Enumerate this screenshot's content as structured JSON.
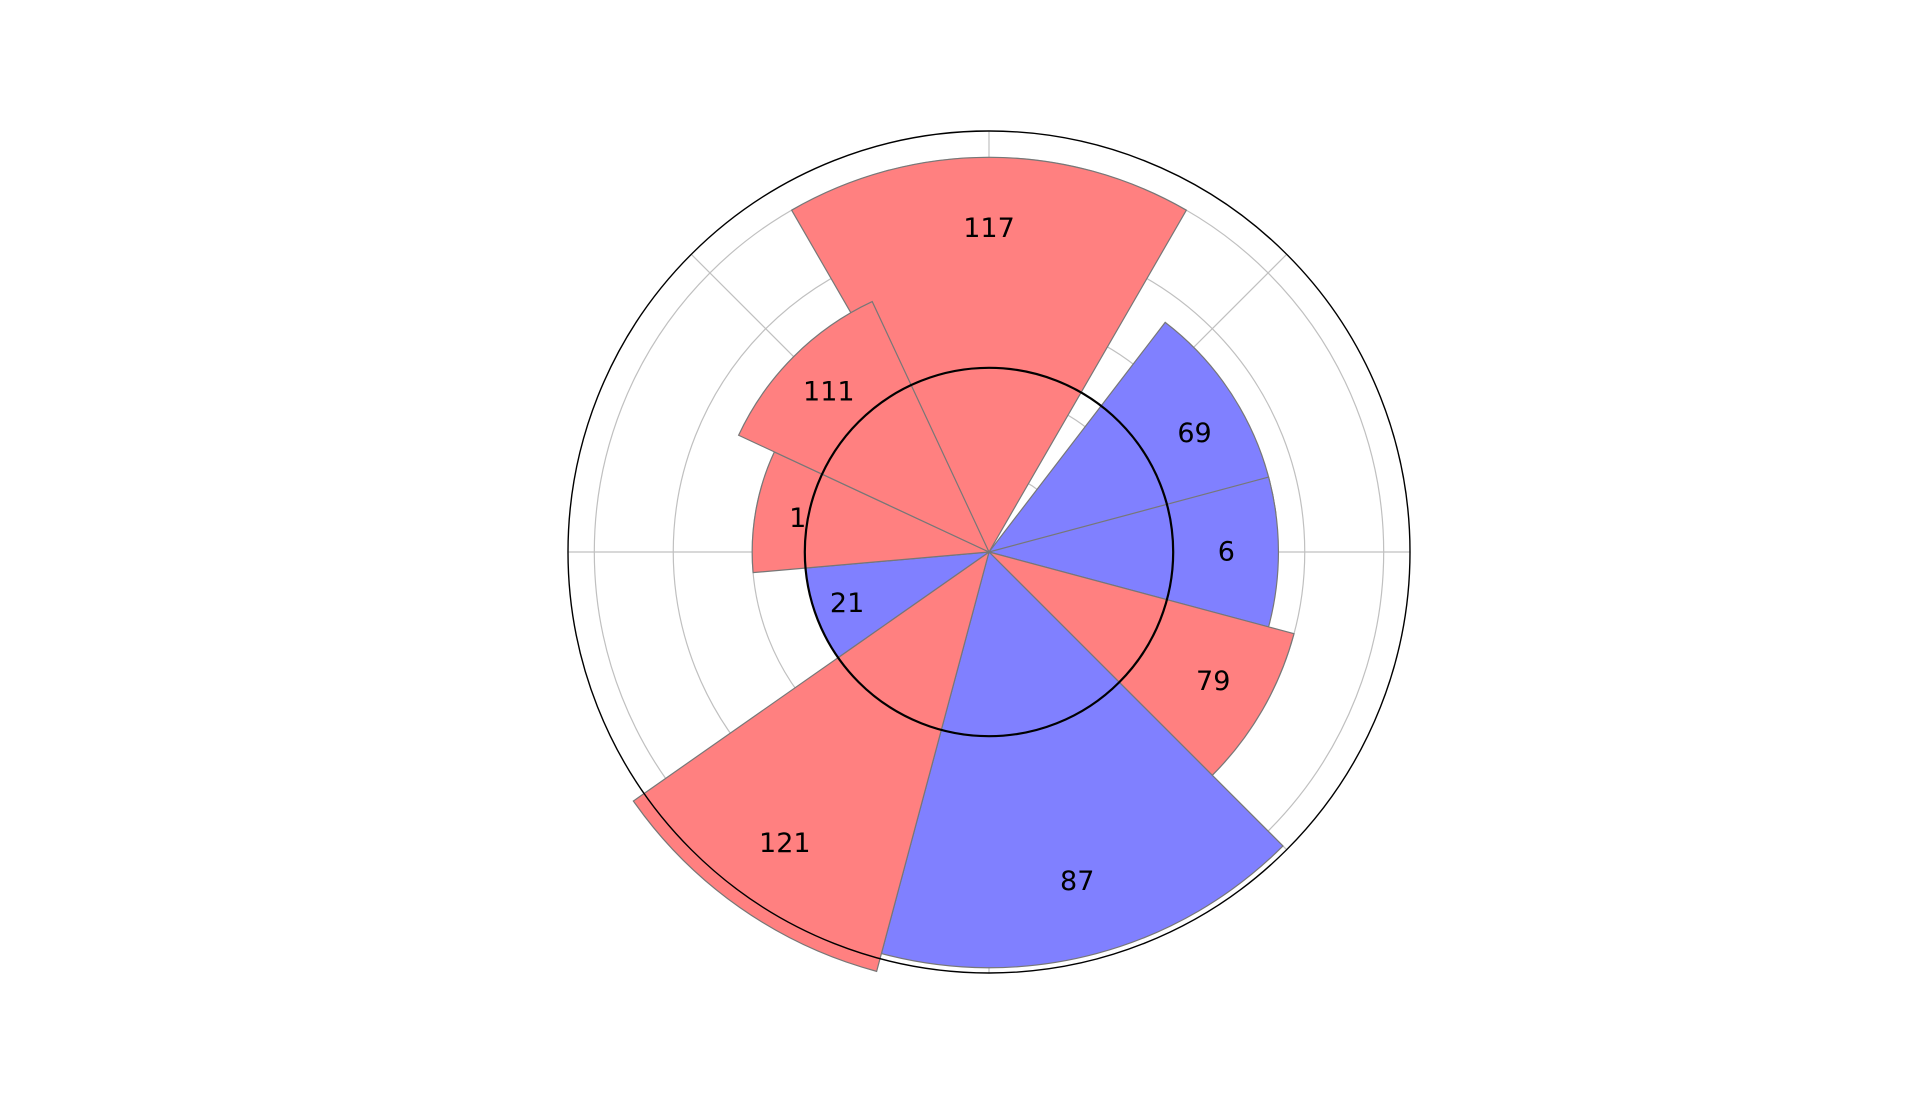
{
  "chart_data": {
    "type": "polar-bar",
    "title": "",
    "baseline": 70,
    "r_max": 160,
    "r_grid": [
      30,
      60,
      90,
      120,
      150
    ],
    "angular_grid_deg": [
      0,
      45,
      90,
      135,
      180,
      225,
      270,
      315
    ],
    "angle_zero": "top",
    "angle_direction": "clockwise",
    "colors": {
      "above": "#ff8080",
      "below": "#8080ff",
      "edge": "#777777",
      "grid": "#c0c0c0",
      "frame": "#000000",
      "baseline": "#000000"
    },
    "sectors": [
      {
        "label": "117",
        "center_deg": 0,
        "width_deg": 60,
        "value": 150,
        "trend": "above"
      },
      {
        "label": "69",
        "center_deg": 60,
        "width_deg": 45,
        "value": 110,
        "trend": "below"
      },
      {
        "label": "6",
        "center_deg": 90,
        "width_deg": 30,
        "value": 110,
        "trend": "below"
      },
      {
        "label": "79",
        "center_deg": 120,
        "width_deg": 30,
        "value": 120,
        "trend": "above"
      },
      {
        "label": "87",
        "center_deg": 165,
        "width_deg": 60,
        "value": 158,
        "trend": "below"
      },
      {
        "label": "121",
        "center_deg": 215,
        "width_deg": 40,
        "value": 165,
        "trend": "above"
      },
      {
        "label": "21",
        "center_deg": 250,
        "width_deg": 30,
        "value": 70,
        "trend": "below"
      },
      {
        "label": "1",
        "center_deg": 280,
        "width_deg": 30,
        "value": 90,
        "trend": "above"
      },
      {
        "label": "111",
        "center_deg": 315,
        "width_deg": 40,
        "value": 105,
        "trend": "above"
      }
    ]
  }
}
